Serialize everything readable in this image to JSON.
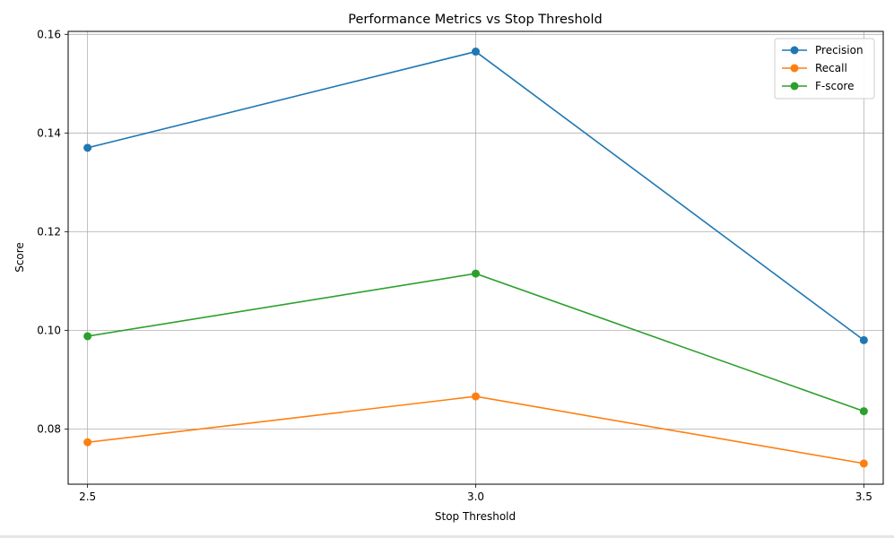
{
  "chart_data": {
    "type": "line",
    "title": "Performance Metrics vs Stop Threshold",
    "xlabel": "Stop Threshold",
    "ylabel": "Score",
    "x": [
      2.5,
      3.0,
      3.5
    ],
    "x_tick_labels": [
      "2.5",
      "3.0",
      "3.5"
    ],
    "y_ticks": [
      0.08,
      0.1,
      0.12,
      0.14,
      0.16
    ],
    "y_tick_labels": [
      "0.08",
      "0.10",
      "0.12",
      "0.14",
      "0.16"
    ],
    "xlim": [
      2.475,
      3.525
    ],
    "ylim": [
      0.0688,
      0.1606
    ],
    "grid": true,
    "legend_position": "top-right",
    "series": [
      {
        "name": "Precision",
        "color": "#1f77b4",
        "marker": "circle",
        "values": [
          0.137,
          0.1565,
          0.098
        ]
      },
      {
        "name": "Recall",
        "color": "#ff7f0e",
        "marker": "circle",
        "values": [
          0.0773,
          0.0866,
          0.073
        ]
      },
      {
        "name": "F-score",
        "color": "#2ca02c",
        "marker": "circle",
        "values": [
          0.0988,
          0.1115,
          0.0836
        ]
      }
    ]
  }
}
